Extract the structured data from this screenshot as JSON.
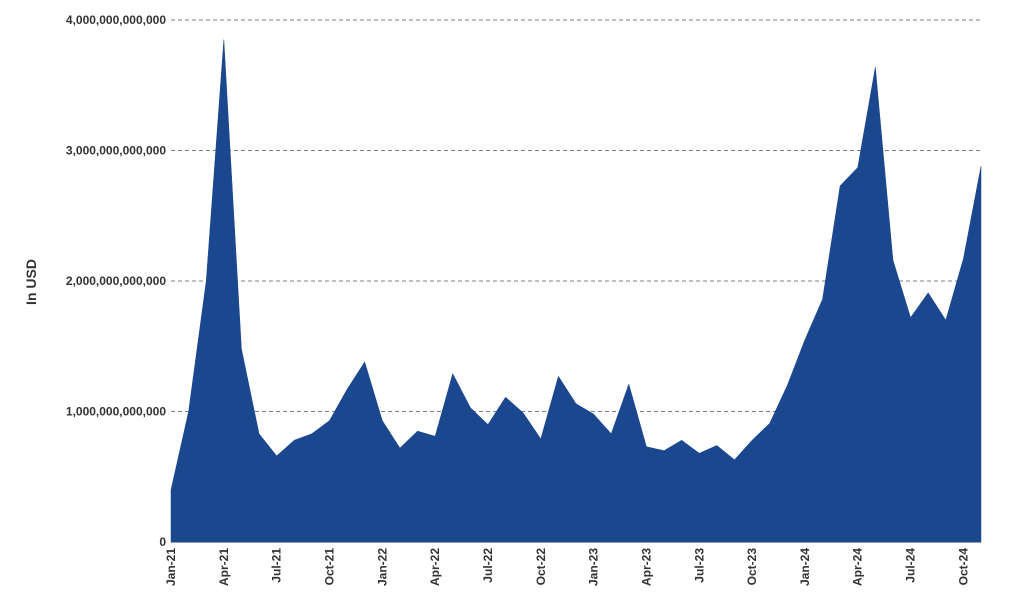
{
  "chart_data": {
    "type": "area",
    "ylabel": "In USD",
    "xlabel": "",
    "ylim": [
      0,
      4000000000000
    ],
    "yticks": [
      0,
      1000000000000,
      2000000000000,
      3000000000000,
      4000000000000
    ],
    "ytick_labels": [
      "0",
      "1,000,000,000,000",
      "2,000,000,000,000",
      "3,000,000,000,000",
      "4,000,000,000,000"
    ],
    "grid": "horizontal dashed",
    "color": "#1b478e",
    "x": [
      "2021-01",
      "2021-02",
      "2021-03",
      "2021-04",
      "2021-05",
      "2021-06",
      "2021-07",
      "2021-08",
      "2021-09",
      "2021-10",
      "2021-11",
      "2021-12",
      "2022-01",
      "2022-02",
      "2022-03",
      "2022-04",
      "2022-05",
      "2022-06",
      "2022-07",
      "2022-08",
      "2022-09",
      "2022-10",
      "2022-11",
      "2022-12",
      "2023-01",
      "2023-02",
      "2023-03",
      "2023-04",
      "2023-05",
      "2023-06",
      "2023-07",
      "2023-08",
      "2023-09",
      "2023-10",
      "2023-11",
      "2023-12",
      "2024-01",
      "2024-02",
      "2024-03",
      "2024-04",
      "2024-05",
      "2024-06",
      "2024-07",
      "2024-08",
      "2024-09",
      "2024-10",
      "2024-11"
    ],
    "values": [
      400000000000,
      1000000000000,
      2000000000000,
      3850000000000,
      1480000000000,
      830000000000,
      660000000000,
      780000000000,
      830000000000,
      930000000000,
      1170000000000,
      1380000000000,
      930000000000,
      720000000000,
      850000000000,
      810000000000,
      1290000000000,
      1030000000000,
      900000000000,
      1110000000000,
      990000000000,
      790000000000,
      1270000000000,
      1060000000000,
      980000000000,
      830000000000,
      1210000000000,
      730000000000,
      700000000000,
      780000000000,
      680000000000,
      740000000000,
      630000000000,
      780000000000,
      910000000000,
      1200000000000,
      1550000000000,
      1860000000000,
      2730000000000,
      2870000000000,
      3640000000000,
      2160000000000,
      1720000000000,
      1910000000000,
      1700000000000,
      2170000000000,
      2880000000000
    ],
    "xtick_labels": [
      {
        "label": "Jan-21",
        "x": "2021-01"
      },
      {
        "label": "Apr-21",
        "x": "2021-04"
      },
      {
        "label": "Jul-21",
        "x": "2021-07"
      },
      {
        "label": "Oct-21",
        "x": "2021-10"
      },
      {
        "label": "Jan-22",
        "x": "2022-01"
      },
      {
        "label": "Apr-22",
        "x": "2022-04"
      },
      {
        "label": "Jul-22",
        "x": "2022-07"
      },
      {
        "label": "Oct-22",
        "x": "2022-10"
      },
      {
        "label": "Jan-23",
        "x": "2023-01"
      },
      {
        "label": "Apr-23",
        "x": "2023-04"
      },
      {
        "label": "Jul-23",
        "x": "2023-07"
      },
      {
        "label": "Oct-23",
        "x": "2023-10"
      },
      {
        "label": "Jan-24",
        "x": "2024-01"
      },
      {
        "label": "Apr-24",
        "x": "2024-04"
      },
      {
        "label": "Jul-24",
        "x": "2024-07"
      },
      {
        "label": "Oct-24",
        "x": "2024-10"
      }
    ]
  }
}
